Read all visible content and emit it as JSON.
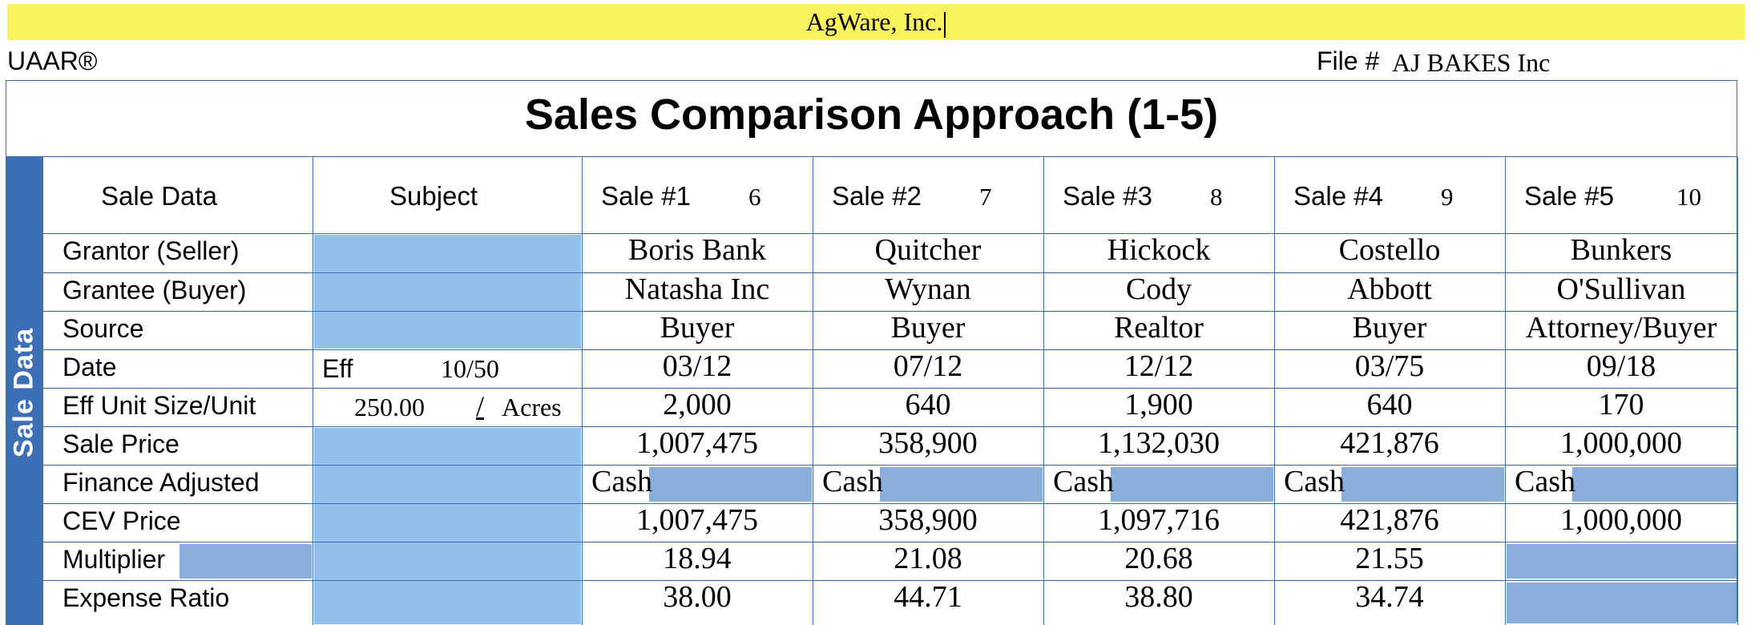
{
  "header": {
    "company": "AgWare, Inc.",
    "form_name": "UAAR®",
    "file_label": "File #",
    "file_value": "AJ BAKES Inc",
    "title": "Sales Comparison Approach (1-5)",
    "side_label": "Sale Data"
  },
  "columns": {
    "label_header": "Sale Data",
    "subject": "Subject",
    "sales": [
      {
        "name": "Sale #1",
        "num": "6"
      },
      {
        "name": "Sale #2",
        "num": "7"
      },
      {
        "name": "Sale #3",
        "num": "8"
      },
      {
        "name": "Sale #4",
        "num": "9"
      },
      {
        "name": "Sale #5",
        "num": "10"
      }
    ]
  },
  "row_labels": [
    "Grantor (Seller)",
    "Grantee (Buyer)",
    "Source",
    "Date",
    "Eff Unit Size/Unit",
    "Sale Price",
    "Finance Adjusted",
    "CEV Price",
    "Multiplier",
    "Expense Ratio"
  ],
  "subject": {
    "date_prefix": "Eff",
    "date_value": "10/50",
    "size_value": "250.00",
    "size_sep": "/",
    "size_unit": "Acres"
  },
  "rows": {
    "grantor": [
      "Boris Bank",
      "Quitcher",
      "Hickock",
      "Costello",
      "Bunkers"
    ],
    "grantee": [
      "Natasha Inc",
      "Wynan",
      "Cody",
      "Abbott",
      "O'Sullivan"
    ],
    "source": [
      "Buyer",
      "Buyer",
      "Realtor",
      "Buyer",
      "Attorney/Buyer"
    ],
    "date": [
      "03/12",
      "07/12",
      "12/12",
      "03/75",
      "09/18"
    ],
    "size": [
      "2,000",
      "640",
      "1,900",
      "640",
      "170"
    ],
    "sale_price": [
      "1,007,475",
      "358,900",
      "1,132,030",
      "421,876",
      "1,000,000"
    ],
    "finance": [
      "Cash",
      "Cash",
      "Cash",
      "Cash",
      "Cash"
    ],
    "cev_price": [
      "1,007,475",
      "358,900",
      "1,097,716",
      "421,876",
      "1,000,000"
    ],
    "multiplier": [
      "18.94",
      "21.08",
      "20.68",
      "21.55",
      ""
    ],
    "expense_ratio": [
      "38.00",
      "44.71",
      "38.80",
      "34.74",
      ""
    ]
  },
  "colors": {
    "banner": "#f9f35c",
    "band": "#3d6fb6",
    "input_fill": "#93bfea",
    "input_fill_dark": "#8aaedc",
    "grid": "#3a6cb0"
  }
}
